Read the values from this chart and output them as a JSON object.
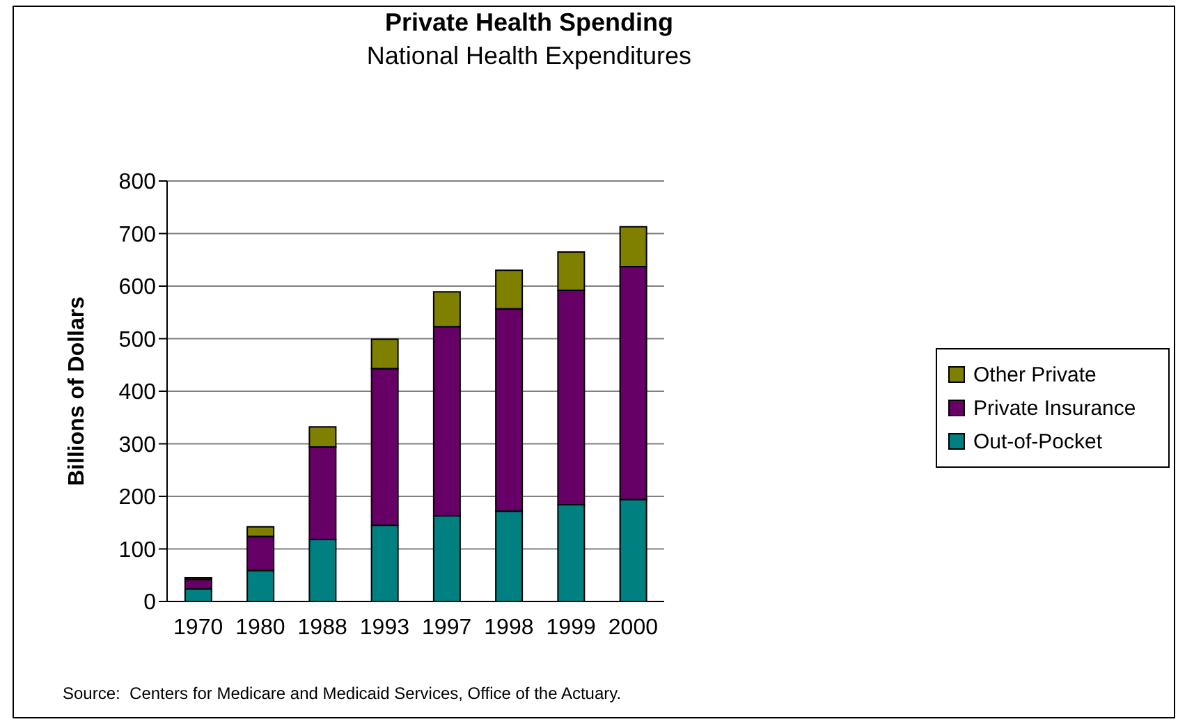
{
  "chart_data": {
    "type": "bar",
    "title": "Private Health Spending",
    "subtitle": "National Health Expenditures",
    "ylabel": "Billions of Dollars",
    "annotations": [
      "Source:  Centers for Medicare and Medicaid Services, Office of the Actuary."
    ],
    "categories": [
      "1970",
      "1980",
      "1988",
      "1993",
      "1997",
      "1998",
      "1999",
      "2000"
    ],
    "series": [
      {
        "name": "Out-of-Pocket",
        "color": "#008080",
        "values": [
          24,
          59,
          118,
          145,
          163,
          172,
          184,
          194
        ]
      },
      {
        "name": "Private Insurance",
        "color": "#660066",
        "values": [
          18,
          65,
          176,
          298,
          360,
          385,
          408,
          443
        ]
      },
      {
        "name": "Other Private",
        "color": "#808000",
        "values": [
          3,
          18,
          38,
          56,
          66,
          73,
          73,
          76
        ]
      }
    ],
    "stacked": true,
    "ylim": [
      0,
      800
    ],
    "yticks": [
      0,
      100,
      200,
      300,
      400,
      500,
      600,
      700,
      800
    ],
    "grid": "y",
    "legend": "right"
  }
}
